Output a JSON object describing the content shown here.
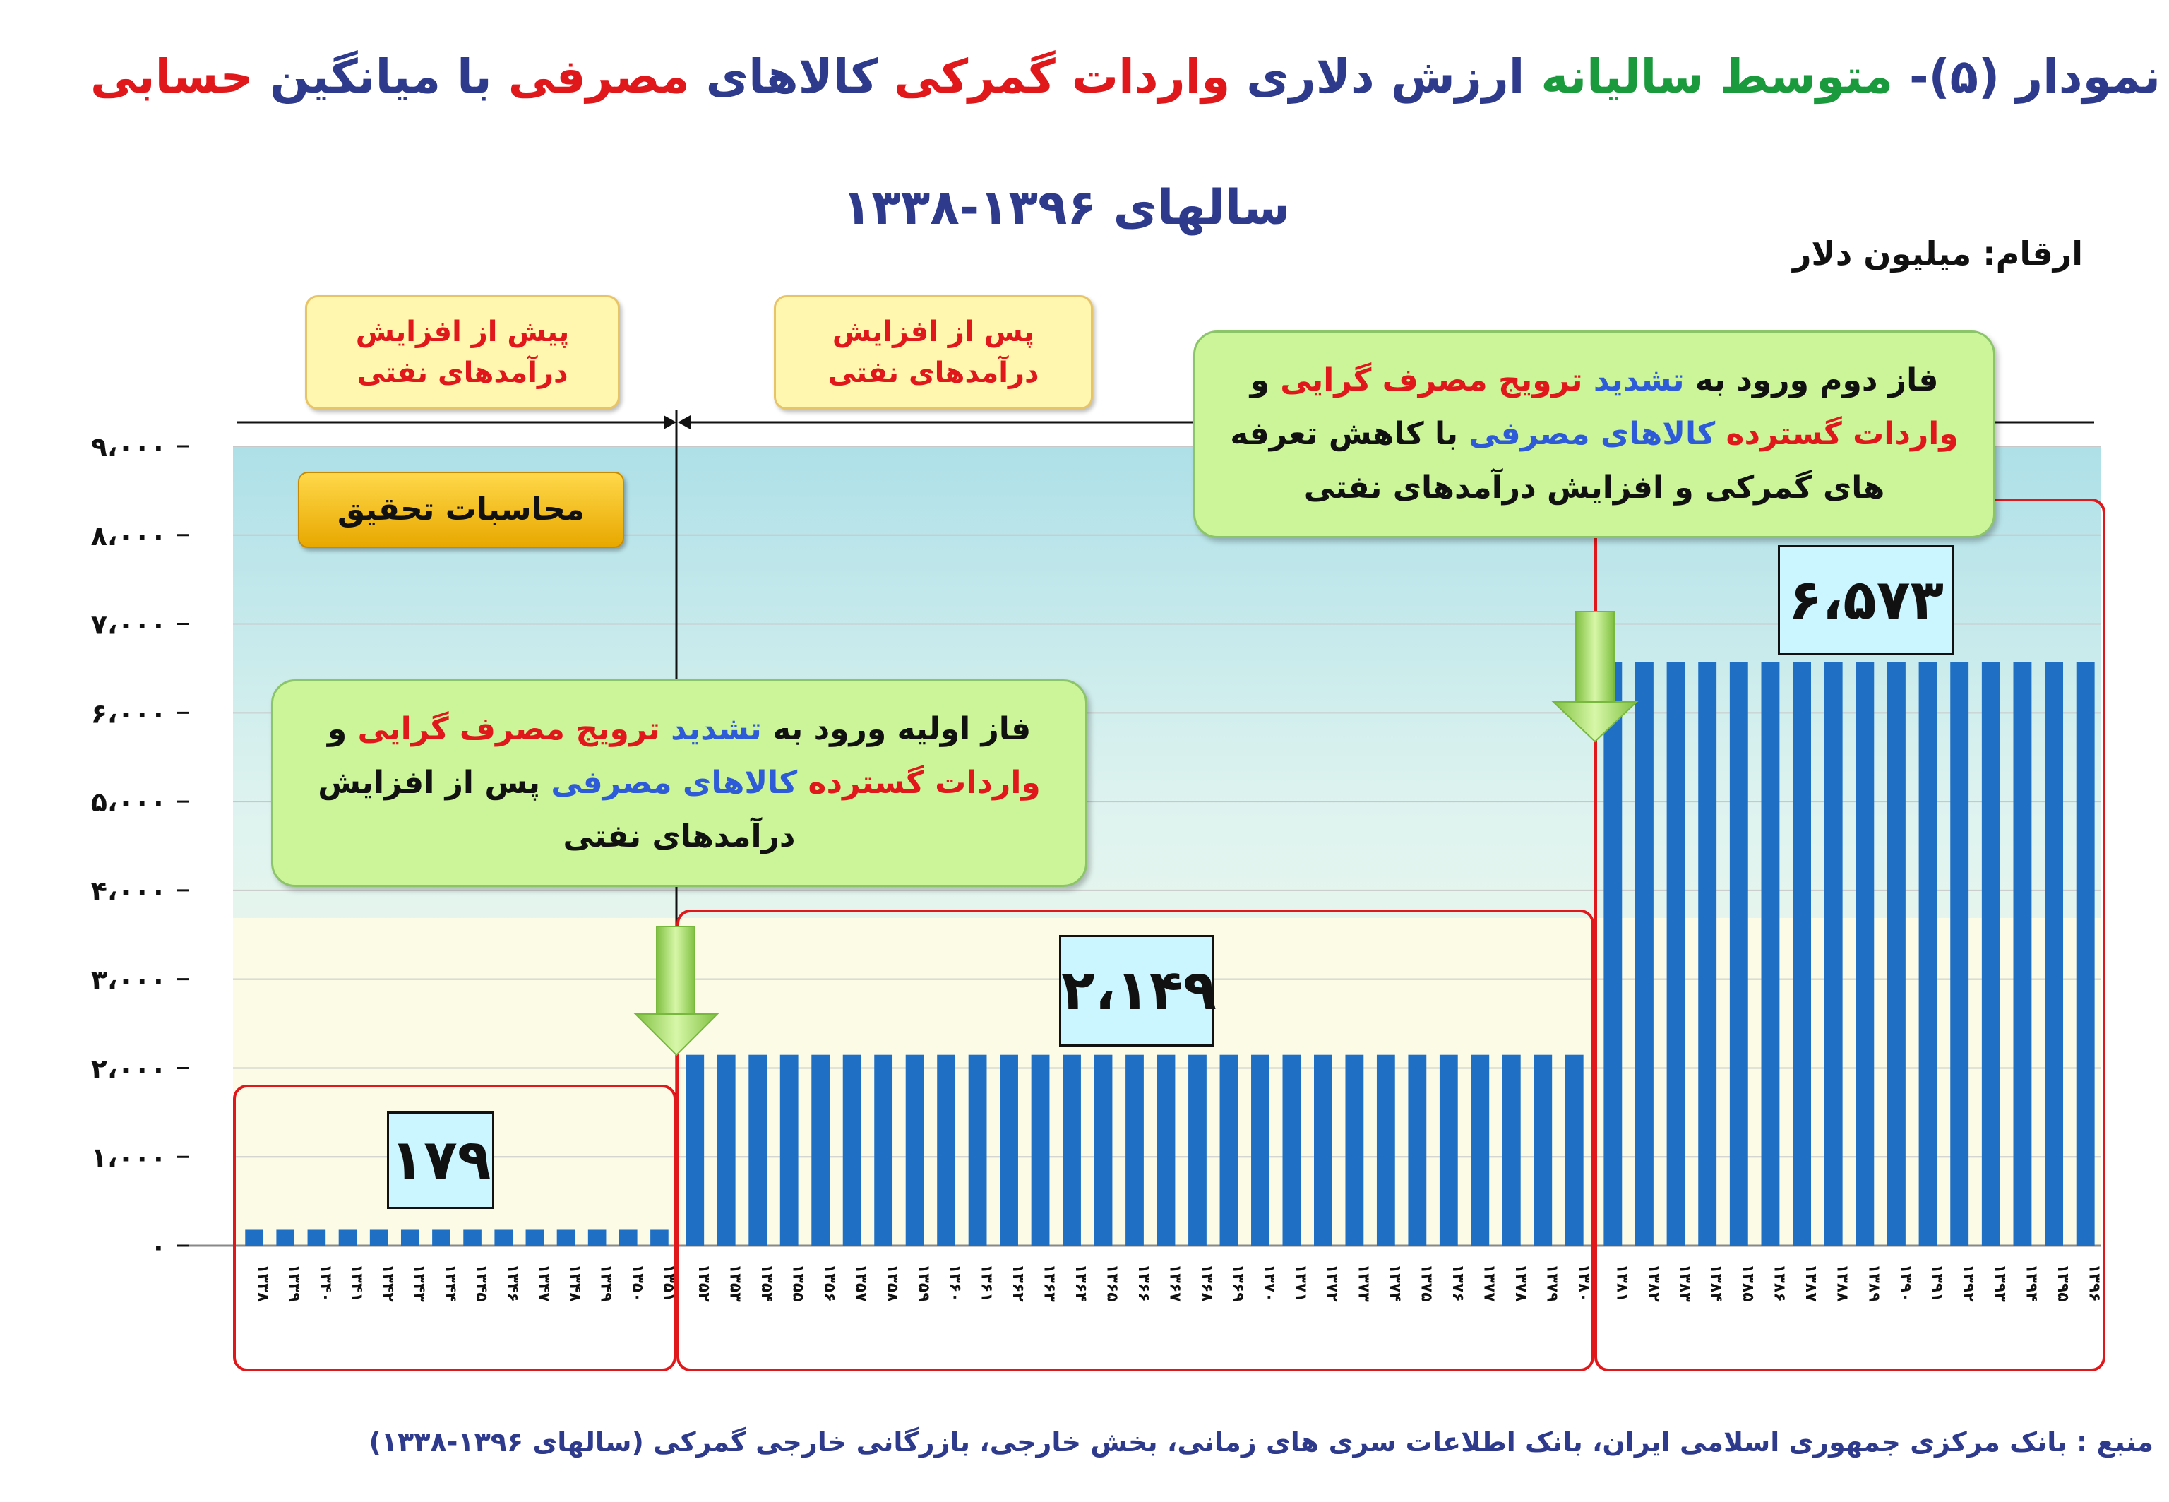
{
  "title": {
    "line1_parts": [
      {
        "text": "نمودار (۵)- ",
        "color": "#2e3a8c"
      },
      {
        "text": "متوسط سالیانه",
        "color": "#1a9a3c"
      },
      {
        "text": " ارزش دلاری ",
        "color": "#2e3a8c"
      },
      {
        "text": "واردات گمرکی",
        "color": "#e0181b"
      },
      {
        "text": " کالاهای ",
        "color": "#2e3a8c"
      },
      {
        "text": "مصرفی",
        "color": "#e0181b"
      },
      {
        "text": " با میانگین ",
        "color": "#2e3a8c"
      },
      {
        "text": "حسابی",
        "color": "#e0181b"
      }
    ],
    "line2": "سالهای ۱۳۹۶-۱۳۳۸"
  },
  "unit_label": "ارقام: میلیون دلار",
  "period_tags": {
    "before": "پیش از افزایش درآمدهای نفتی",
    "after": "پس از افزایش درآمدهای نفتی"
  },
  "research_badge": "محاسبات تحقیق",
  "notes": {
    "phase1_parts": [
      {
        "text": "فاز اولیه ورود به ",
        "color": "#111111"
      },
      {
        "text": "تشدید",
        "color": "#2e5bd8"
      },
      {
        "text": "  ترویج مصرف گرایی",
        "color": "#e0181b"
      },
      {
        "text": " و ",
        "color": "#111111"
      },
      {
        "text": "واردات گسترده",
        "color": "#e0181b"
      },
      {
        "text": " کالاهای مصرفی",
        "color": "#2e5bd8"
      },
      {
        "text": " پس از افزایش درآمدهای نفتی",
        "color": "#111111"
      }
    ],
    "phase2_parts": [
      {
        "text": "فاز دوم ورود به ",
        "color": "#111111"
      },
      {
        "text": "تشدید",
        "color": "#2e5bd8"
      },
      {
        "text": " ترویج مصرف گرایی",
        "color": "#e0181b"
      },
      {
        "text": " و ",
        "color": "#111111"
      },
      {
        "text": "واردات گسترده",
        "color": "#e0181b"
      },
      {
        "text": " کالاهای مصرفی",
        "color": "#2e5bd8"
      },
      {
        "text": " با کاهش تعرفه های گمرکی و افزایش درآمدهای نفتی",
        "color": "#111111"
      }
    ]
  },
  "source": "منبع : بانک مرکزی جمهوری اسلامی ایران، بانک اطلاعات سری های زمانی، بخش خارجی، بازرگانی خارجی گمرکی (سالهای ۱۳۹۶-۱۳۳۸)",
  "colors": {
    "bar": "#1f6fc5",
    "group_border": "#e0181b",
    "arrow": "#a6e05a"
  },
  "chart_data": {
    "type": "bar",
    "title": "نمودار (۵)- متوسط سالیانه ارزش دلاری واردات گمرکی کالاهای مصرفی با میانگین حسابی سالهای ۱۳۹۶-۱۳۳۸",
    "ylabel": "ارقام: میلیون دلار",
    "xlabel": "",
    "ylim": [
      0,
      9000
    ],
    "y_ticks": [
      "۰",
      "۱،۰۰۰",
      "۲،۰۰۰",
      "۳،۰۰۰",
      "۴،۰۰۰",
      "۵،۰۰۰",
      "۶،۰۰۰",
      "۷،۰۰۰",
      "۸،۰۰۰",
      "۹،۰۰۰"
    ],
    "y_tick_values": [
      0,
      1000,
      2000,
      3000,
      4000,
      5000,
      6000,
      7000,
      8000,
      9000
    ],
    "grid": true,
    "legend": "none",
    "groups": [
      {
        "value_label": "۱۷۹",
        "value": 179,
        "years": [
          "۱۳۳۸",
          "۱۳۳۹",
          "۱۳۴۰",
          "۱۳۴۱",
          "۱۳۴۲",
          "۱۳۴۳",
          "۱۳۴۴",
          "۱۳۴۵",
          "۱۳۴۶",
          "۱۳۴۷",
          "۱۳۴۸",
          "۱۳۴۹",
          "۱۳۵۰",
          "۱۳۵۱"
        ]
      },
      {
        "value_label": "۲،۱۴۹",
        "value": 2149,
        "years": [
          "۱۳۵۲",
          "۱۳۵۳",
          "۱۳۵۴",
          "۱۳۵۵",
          "۱۳۵۶",
          "۱۳۵۷",
          "۱۳۵۸",
          "۱۳۵۹",
          "۱۳۶۰",
          "۱۳۶۱",
          "۱۳۶۲",
          "۱۳۶۳",
          "۱۳۶۴",
          "۱۳۶۵",
          "۱۳۶۶",
          "۱۳۶۷",
          "۱۳۶۸",
          "۱۳۶۹",
          "۱۳۷۰",
          "۱۳۷۱",
          "۱۳۷۲",
          "۱۳۷۳",
          "۱۳۷۴",
          "۱۳۷۵",
          "۱۳۷۶",
          "۱۳۷۷",
          "۱۳۷۸",
          "۱۳۷۹",
          "۱۳۸۰"
        ]
      },
      {
        "value_label": "۶،۵۷۳",
        "value": 6573,
        "years": [
          "۱۳۸۱",
          "۱۳۸۲",
          "۱۳۸۳",
          "۱۳۸۴",
          "۱۳۸۵",
          "۱۳۸۶",
          "۱۳۸۷",
          "۱۳۸۸",
          "۱۳۸۹",
          "۱۳۹۰",
          "۱۳۹۱",
          "۱۳۹۲",
          "۱۳۹۳",
          "۱۳۹۴",
          "۱۳۹۵",
          "۱۳۹۶"
        ]
      }
    ]
  }
}
